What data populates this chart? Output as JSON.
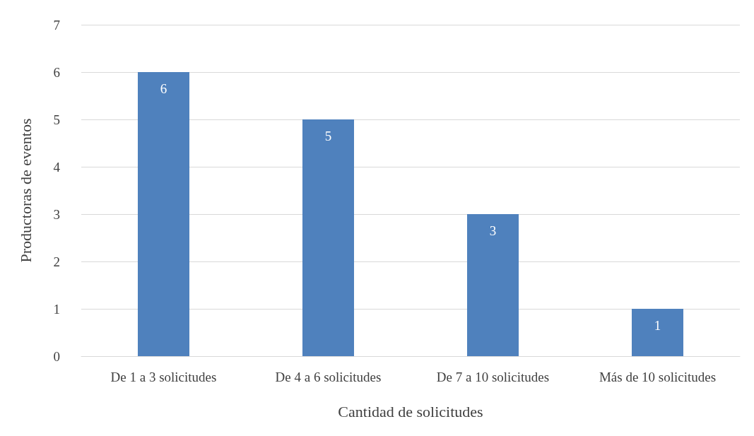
{
  "chart_data": {
    "type": "bar",
    "xlabel": "Cantidad de solicitudes",
    "ylabel": "Productoras de eventos",
    "categories": [
      "De 1 a 3 solicitudes",
      "De 4 a 6 solicitudes",
      "De 7 a 10 solicitudes",
      "Más de 10 solicitudes"
    ],
    "values": [
      6,
      5,
      3,
      1
    ],
    "color": "#4f81bd",
    "ylim": [
      0,
      7
    ],
    "yticks": [
      0,
      1,
      2,
      3,
      4,
      5,
      6,
      7
    ],
    "grid": "y",
    "data_labels": true
  }
}
